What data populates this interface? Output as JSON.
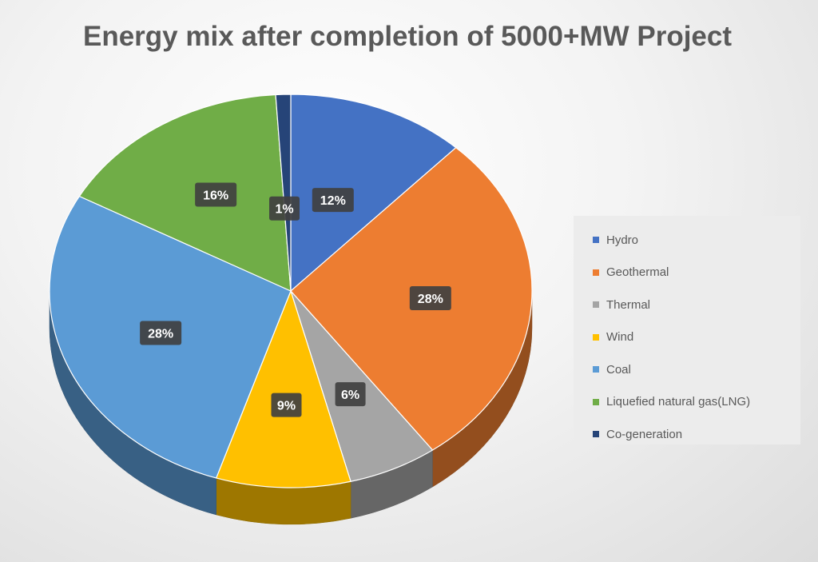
{
  "chart_data": {
    "type": "pie",
    "title": "Energy mix after completion of  5000+MW Project",
    "style": "3d",
    "legend_position": "right",
    "categories": [
      "Hydro",
      "Geothermal",
      "Thermal",
      "Wind",
      "Coal",
      "Liquefied natural gas(LNG)",
      "Co-generation"
    ],
    "values": [
      12,
      28,
      6,
      9,
      28,
      16,
      1
    ],
    "labels": [
      "12%",
      "28%",
      "6%",
      "9%",
      "28%",
      "16%",
      "1%"
    ],
    "colors": [
      "#4472C4",
      "#ED7D31",
      "#A5A5A5",
      "#FFC000",
      "#5B9BD5",
      "#70AD47",
      "#264478"
    ]
  }
}
